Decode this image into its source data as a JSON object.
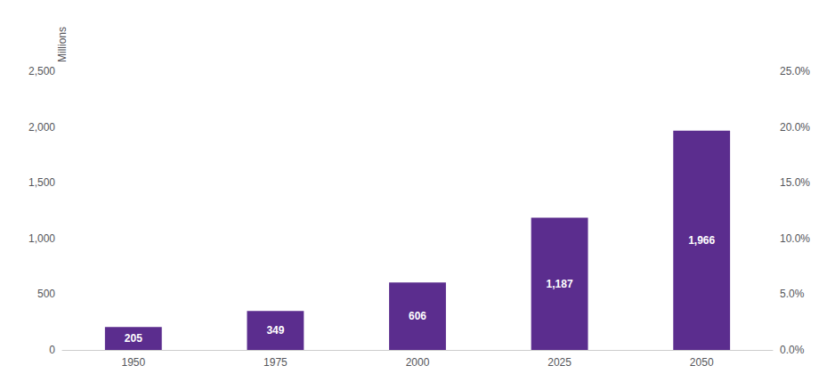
{
  "chart_data": {
    "type": "bar",
    "ylabel": "Millions",
    "categories": [
      "1950",
      "1975",
      "2000",
      "2025",
      "2050"
    ],
    "values": [
      205,
      349,
      606,
      1187,
      1966
    ],
    "value_labels": [
      "205",
      "349",
      "606",
      "1,187",
      "1,966"
    ],
    "data_labels": true,
    "color": "#5b2d8e",
    "ylim": [
      0,
      2500
    ],
    "yticks": [
      0,
      500,
      {
        "value": 1000,
        "label": "1,000"
      },
      {
        "value": 1500,
        "label": "1,500"
      },
      {
        "value": 2000,
        "label": "2,000"
      },
      {
        "value": 2500,
        "label": "2,500"
      }
    ],
    "y2lim": [
      0,
      0.25
    ],
    "y2ticks": [
      {
        "value": 0.0,
        "label": "0.0%"
      },
      {
        "value": 0.05,
        "label": "5.0%"
      },
      {
        "value": 0.1,
        "label": "10.0%"
      },
      {
        "value": 0.15,
        "label": "15.0%"
      },
      {
        "value": 0.2,
        "label": "20.0%"
      },
      {
        "value": 0.25,
        "label": "25.0%"
      }
    ],
    "grid": false
  }
}
